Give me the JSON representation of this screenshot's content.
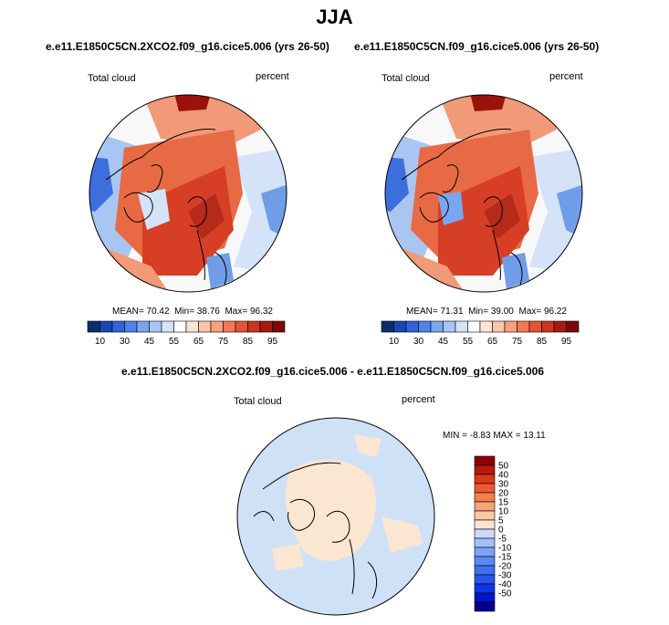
{
  "figure": {
    "title": "JJA"
  },
  "panels": [
    {
      "title": "e.e11.E1850C5CN.2XCO2.f09_g16.cice5.006 (yrs 26-50)",
      "left_label": "Total cloud",
      "right_label": "percent",
      "stats": {
        "mean_label": "MEAN=",
        "mean": "70.42",
        "min_label": "Min=",
        "min": "38.76",
        "max_label": "Max=",
        "max": "96.32"
      }
    },
    {
      "title": "e.e11.E1850C5CN.f09_g16.cice5.006 (yrs 26-50)",
      "left_label": "Total cloud",
      "right_label": "percent",
      "stats": {
        "mean_label": "MEAN=",
        "mean": "71.31",
        "min_label": "Min=",
        "min": "39.00",
        "max_label": "Max=",
        "max": "96.22"
      }
    },
    {
      "title": "e.e11.E1850C5CN.2XCO2.f09_g16.cice5.006 - e.e11.E1850C5CN.f09_g16.cice5.006",
      "left_label": "Total cloud",
      "right_label": "percent",
      "stats": {
        "min_label": "MIN =",
        "min": "-8.83",
        "max_label": "MAX =",
        "max": "13.11"
      }
    }
  ],
  "colorbar_top": {
    "colors": [
      "#08306b",
      "#1747b5",
      "#2f63d8",
      "#4f83e8",
      "#7aa6f0",
      "#a8c6f5",
      "#d3e3fa",
      "#ffffff",
      "#fde5d5",
      "#fcc5a8",
      "#f9a07c",
      "#f27a55",
      "#e35434",
      "#cb3420",
      "#a81a10",
      "#7f0806"
    ],
    "tick_labels": [
      "10",
      "30",
      "45",
      "55",
      "65",
      "75",
      "85",
      "95"
    ]
  },
  "colorbar_diff": {
    "colors": [
      "#00008f",
      "#0014c8",
      "#0f35e6",
      "#2554f0",
      "#3d70f3",
      "#5a89f5",
      "#7ca3f7",
      "#a3bff9",
      "#cbdafb",
      "#fde4d0",
      "#fbc7a4",
      "#f8a478",
      "#f47f53",
      "#ec5a33",
      "#d9381b",
      "#b81808",
      "#8b0000"
    ],
    "tick_labels": [
      "50",
      "40",
      "30",
      "20",
      "15",
      "10",
      "5",
      "0",
      "-5",
      "-10",
      "-15",
      "-20",
      "-30",
      "-40",
      "-50"
    ]
  },
  "map_colors": {
    "deep_red": "#9a1208",
    "red": "#d63f25",
    "orange_red": "#e86a45",
    "salmon": "#f29a78",
    "peach": "#fbd3bd",
    "white": "#f8f8f8",
    "pale_blue": "#d4e3f8",
    "light_blue": "#a9c6f2",
    "mid_blue": "#6f9de8",
    "blue": "#3c6fdd",
    "diff_blue": "#cfe1f7",
    "diff_peach": "#fbe6d2",
    "coast": "#000000"
  }
}
